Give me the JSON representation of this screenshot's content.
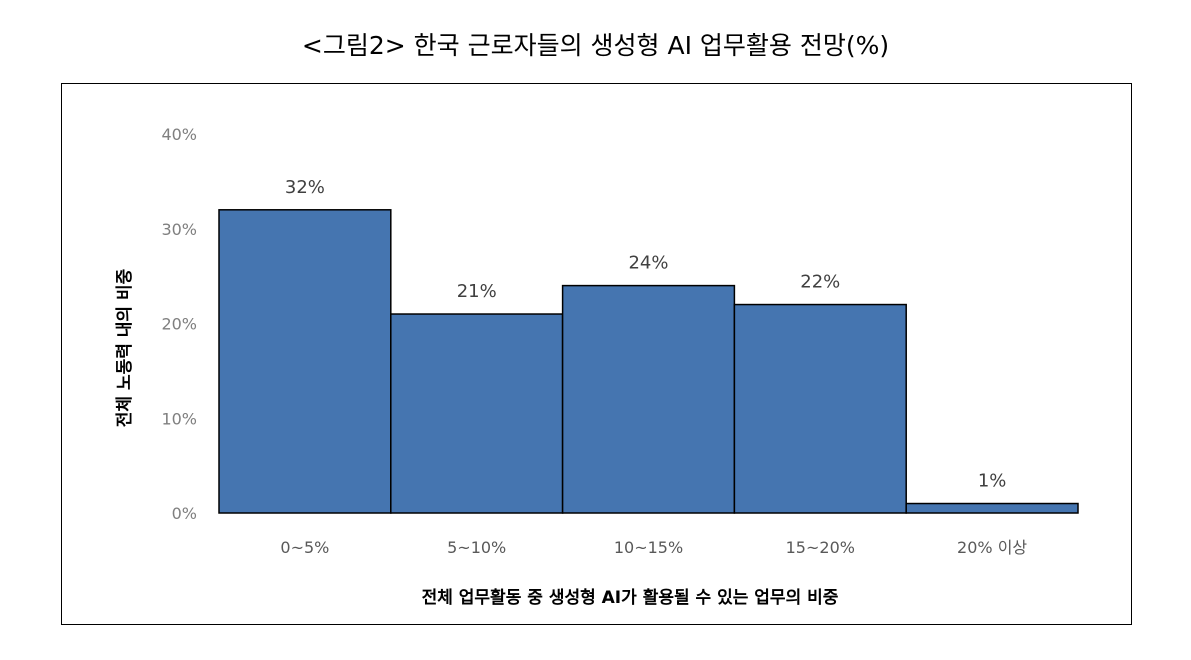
{
  "chart_data": {
    "type": "bar",
    "title": "<그림2> 한국 근로자들의 생성형 AI 업무활용 전망(%)",
    "xlabel": "전체 업무활동 중 생성형 AI가 활용될 수 있는 업무의 비중",
    "ylabel": "전체 노동력 내의 비중",
    "categories": [
      "0~5%",
      "5~10%",
      "10~15%",
      "15~20%",
      "20% 이상"
    ],
    "values": [
      32,
      21,
      24,
      22,
      1
    ],
    "data_labels": [
      "32%",
      "21%",
      "24%",
      "22%",
      "1%"
    ],
    "ylim": [
      0,
      40
    ],
    "yticks": [
      0,
      10,
      20,
      30,
      40
    ],
    "ytick_labels": [
      "0%",
      "10%",
      "20%",
      "30%",
      "40%"
    ],
    "grid": false,
    "bar_color": "#4575b0"
  }
}
